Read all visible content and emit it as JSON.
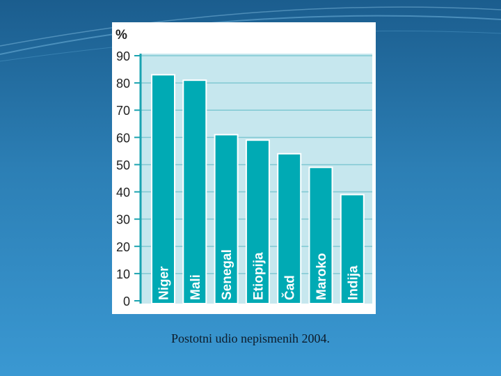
{
  "slide": {
    "caption": "Postotni udio nepismenih 2004.",
    "background_top": "#1b5d8e",
    "background_bottom": "#3a98d2"
  },
  "chart_data": {
    "type": "bar",
    "title": "",
    "ylabel": "%",
    "xlabel": "",
    "categories": [
      "Niger",
      "Mali",
      "Senegal",
      "Etiopija",
      "Čad",
      "Maroko",
      "Indija"
    ],
    "values": [
      83,
      81,
      61,
      59,
      54,
      49,
      39
    ],
    "ylim": [
      0,
      90
    ],
    "yticks": [
      0,
      10,
      20,
      30,
      40,
      50,
      60,
      70,
      80,
      90
    ],
    "grid": true,
    "colors": {
      "bar": "#00aab4",
      "bar_outline": "#ffffff",
      "plot_background": "#c6e7ee",
      "gridline": "#7fc8d2",
      "axis": "#1aa3b0",
      "tick_label": "#222222",
      "bar_label": "#ffffff"
    }
  }
}
